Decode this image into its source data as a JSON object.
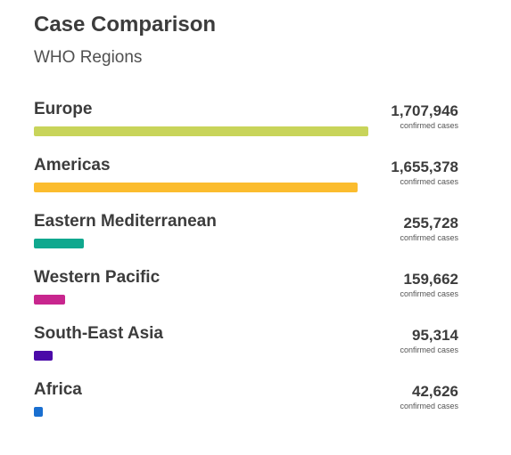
{
  "header": {
    "title": "Case Comparison",
    "subtitle": "WHO Regions"
  },
  "chart_data": {
    "type": "bar",
    "orientation": "horizontal",
    "title": "Case Comparison",
    "subtitle": "WHO Regions",
    "categories": [
      "Europe",
      "Americas",
      "Eastern Mediterranean",
      "Western Pacific",
      "South-East Asia",
      "Africa"
    ],
    "values": [
      1707946,
      1655378,
      255728,
      159662,
      95314,
      42626
    ],
    "value_labels": [
      "1,707,946",
      "1,655,378",
      "255,728",
      "159,662",
      "95,314",
      "42,626"
    ],
    "unit_label": "confirmed cases",
    "colors": [
      "#c8d45a",
      "#fbbc2e",
      "#10a88e",
      "#c8268e",
      "#4b0aa8",
      "#1a6fd0"
    ],
    "grid": false,
    "legend": "none"
  }
}
